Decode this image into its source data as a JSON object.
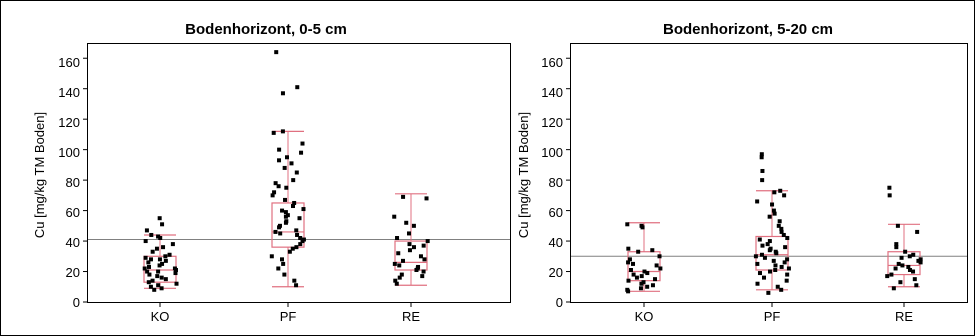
{
  "chart_data": [
    {
      "type": "scatter",
      "title": "Bodenhorizont, 0-5 cm",
      "ylabel": "Cu [mg/kg TM Boden]",
      "xlabel": "",
      "categories": [
        "KO",
        "PF",
        "RE"
      ],
      "ylim": [
        0,
        170
      ],
      "yticks": [
        "0",
        "20",
        "40",
        "60",
        "80",
        "100",
        "120",
        "140",
        "160"
      ],
      "reference_line": 41,
      "reference_color": "#808080",
      "box_color": "#e07080",
      "boxes": [
        {
          "category": "KO",
          "whisker_low": 9,
          "q1": 13,
          "median": 21,
          "q3": 30,
          "whisker_high": 44
        },
        {
          "category": "PF",
          "whisker_low": 10,
          "q1": 36,
          "median": 46,
          "q3": 65,
          "whisker_high": 112
        },
        {
          "category": "RE",
          "whisker_low": 11,
          "q1": 21,
          "median": 26,
          "q3": 40,
          "whisker_high": 71
        }
      ],
      "points": [
        {
          "category": "KO",
          "values": [
            55,
            51,
            47,
            44,
            43,
            42,
            40,
            38,
            36,
            35,
            33,
            31,
            30,
            29,
            28,
            28,
            27,
            26,
            25,
            24,
            23,
            22,
            22,
            21,
            20,
            20,
            19,
            18,
            17,
            16,
            15,
            14,
            13,
            12,
            11,
            10,
            9,
            8
          ]
        },
        {
          "category": "PF",
          "values": [
            164,
            141,
            137,
            112,
            111,
            104,
            100,
            98,
            95,
            93,
            91,
            88,
            85,
            80,
            78,
            76,
            75,
            72,
            70,
            67,
            65,
            63,
            61,
            60,
            59,
            57,
            56,
            55,
            53,
            52,
            50,
            49,
            47,
            46,
            45,
            44,
            42,
            41,
            40,
            38,
            36,
            35,
            33,
            30,
            28,
            25,
            22,
            18,
            14,
            11
          ]
        },
        {
          "category": "RE",
          "values": [
            69,
            68,
            56,
            52,
            50,
            45,
            42,
            40,
            38,
            37,
            36,
            34,
            32,
            30,
            28,
            27,
            25,
            24,
            23,
            22,
            21,
            20,
            18,
            17,
            16,
            14,
            12
          ]
        }
      ]
    },
    {
      "type": "scatter",
      "title": "Bodenhorizont, 5-20 cm",
      "ylabel": "Cu [mg/kg TM Boden]",
      "xlabel": "",
      "categories": [
        "KO",
        "PF",
        "RE"
      ],
      "ylim": [
        0,
        170
      ],
      "yticks": [
        "0",
        "20",
        "40",
        "60",
        "80",
        "100",
        "120",
        "140",
        "160"
      ],
      "reference_line": 30,
      "reference_color": "#808080",
      "box_color": "#e07080",
      "boxes": [
        {
          "category": "KO",
          "whisker_low": 7,
          "q1": 14,
          "median": 20,
          "q3": 33,
          "whisker_high": 52
        },
        {
          "category": "PF",
          "whisker_low": 8,
          "q1": 21,
          "median": 31,
          "q3": 43,
          "whisker_high": 73
        },
        {
          "category": "RE",
          "whisker_low": 10,
          "q1": 18,
          "median": 24,
          "q3": 33,
          "whisker_high": 51
        }
      ],
      "points": [
        {
          "category": "KO",
          "values": [
            51,
            50,
            49,
            35,
            34,
            33,
            30,
            28,
            26,
            25,
            24,
            22,
            21,
            20,
            19,
            18,
            17,
            16,
            15,
            14,
            13,
            12,
            11,
            10,
            9,
            8,
            7
          ]
        },
        {
          "category": "PF",
          "values": [
            97,
            95,
            86,
            80,
            73,
            72,
            70,
            66,
            64,
            60,
            58,
            56,
            53,
            50,
            48,
            46,
            44,
            42,
            41,
            40,
            38,
            37,
            36,
            35,
            34,
            33,
            32,
            31,
            30,
            29,
            28,
            27,
            26,
            25,
            24,
            23,
            22,
            21,
            20,
            19,
            18,
            16,
            14,
            12,
            10,
            8,
            6
          ]
        },
        {
          "category": "RE",
          "values": [
            75,
            70,
            50,
            46,
            38,
            36,
            33,
            31,
            30,
            29,
            28,
            27,
            26,
            25,
            24,
            23,
            22,
            21,
            20,
            18,
            17,
            15,
            13,
            11,
            9
          ]
        }
      ]
    }
  ]
}
